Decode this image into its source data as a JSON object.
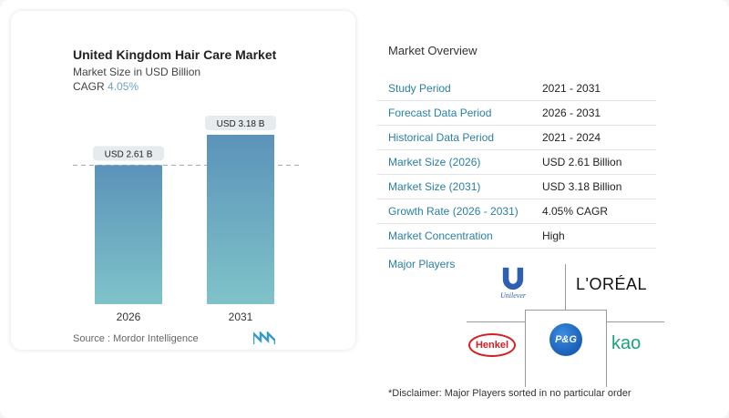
{
  "chart_data": {
    "type": "bar",
    "title": "United Kingdom Hair Care Market",
    "subtitle": "Market Size in USD Billion",
    "cagr_label": "CAGR",
    "cagr_value": "4.05%",
    "categories": [
      "2026",
      "2031"
    ],
    "values": [
      2.61,
      3.18
    ],
    "data_labels": [
      "USD 2.61 B",
      "USD 3.18 B"
    ],
    "bar_colors": [
      "#5b93b9",
      "#7fc3c9"
    ],
    "source": "Source :  Mordor Intelligence"
  },
  "overview": {
    "title": "Market Overview",
    "rows": [
      {
        "label": "Study Period",
        "value": "2021 - 2031"
      },
      {
        "label": "Forecast Data Period",
        "value": "2026 - 2031"
      },
      {
        "label": "Historical Data Period",
        "value": "2021 - 2024"
      },
      {
        "label": "Market Size (2026)",
        "value": "USD 2.61 Billion"
      },
      {
        "label": "Market Size (2031)",
        "value": "USD 3.18 Billion"
      },
      {
        "label": "Growth Rate (2026 - 2031)",
        "value": "4.05% CAGR"
      },
      {
        "label": "Market Concentration",
        "value": "High"
      }
    ],
    "major_players_label": "Major Players",
    "players": [
      "Unilever",
      "L'ORÉAL",
      "P&G",
      "Henkel",
      "Kao"
    ],
    "disclaimer": "*Disclaimer: Major Players sorted in no particular order"
  }
}
